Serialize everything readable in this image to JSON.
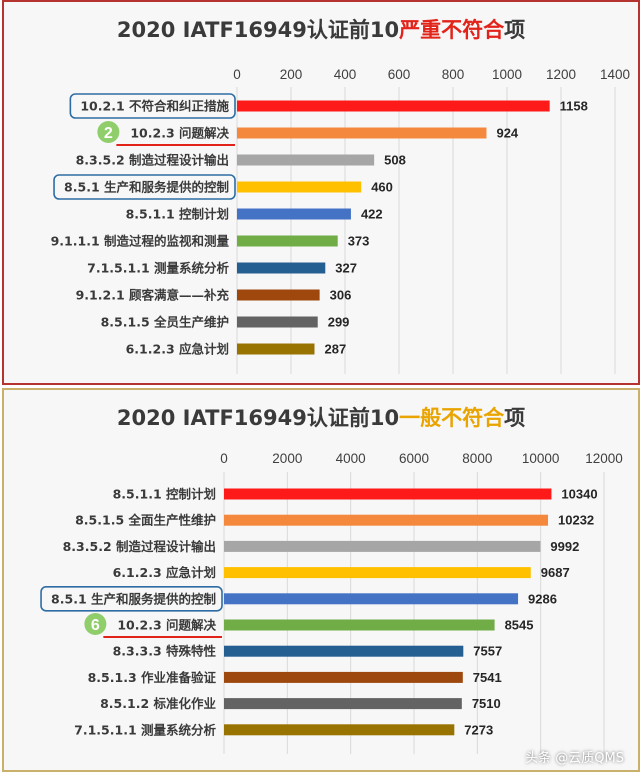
{
  "charts": [
    {
      "title_main": "2020 IATF16949认证前10",
      "title_highlight": "严重不符合",
      "title_suffix": "项"
    },
    {
      "title_main": "2020 IATF16949认证前10",
      "title_highlight": "一般不符合",
      "title_suffix": "项"
    }
  ],
  "watermark": "头条 @云质QMS",
  "chart_data": [
    {
      "type": "bar",
      "orientation": "horizontal",
      "title": "2020 IATF16949认证前10严重不符合项",
      "categories": [
        "10.2.1 不符合和纠正措施",
        "10.2.3 问题解决",
        "8.3.5.2 制造过程设计输出",
        "8.5.1 生产和服务提供的控制",
        "8.5.1.1 控制计划",
        "9.1.1.1 制造过程的监视和测量",
        "7.1.5.1.1 测量系统分析",
        "9.1.2.1 顾客满意——补充",
        "8.5.1.5 全员生产维护",
        "6.1.2.3 应急计划"
      ],
      "values": [
        1158,
        924,
        508,
        460,
        422,
        373,
        327,
        306,
        299,
        287
      ],
      "colors": [
        "#ff1a1a",
        "#f4893d",
        "#a6a6a6",
        "#ffc000",
        "#4472c4",
        "#70ad47",
        "#255e91",
        "#9e480e",
        "#636363",
        "#997300"
      ],
      "xlim": [
        0,
        1400
      ],
      "xticks": [
        0,
        200,
        400,
        600,
        800,
        1000,
        1200,
        1400
      ],
      "grid": true,
      "boxed_categories": [
        0,
        3
      ],
      "numbered_marker": {
        "category": 1,
        "label": "2"
      }
    },
    {
      "type": "bar",
      "orientation": "horizontal",
      "title": "2020 IATF16949认证前10一般不符合项",
      "categories": [
        "8.5.1.1 控制计划",
        "8.5.1.5 全面生产性维护",
        "8.3.5.2 制造过程设计输出",
        "6.1.2.3 应急计划",
        "8.5.1 生产和服务提供的控制",
        "10.2.3 问题解决",
        "8.3.3.3 特殊特性",
        "8.5.1.3 作业准备验证",
        "8.5.1.2 标准化作业",
        "7.1.5.1.1 测量系统分析"
      ],
      "values": [
        10340,
        10232,
        9992,
        9687,
        9286,
        8545,
        7557,
        7541,
        7510,
        7273
      ],
      "colors": [
        "#ff1a1a",
        "#f4893d",
        "#a6a6a6",
        "#ffc000",
        "#4472c4",
        "#70ad47",
        "#255e91",
        "#9e480e",
        "#636363",
        "#997300"
      ],
      "xlim": [
        0,
        12000
      ],
      "xticks": [
        0,
        2000,
        4000,
        6000,
        8000,
        10000,
        12000
      ],
      "grid": true,
      "boxed_categories": [
        4
      ],
      "numbered_marker": {
        "category": 5,
        "label": "6"
      }
    }
  ]
}
